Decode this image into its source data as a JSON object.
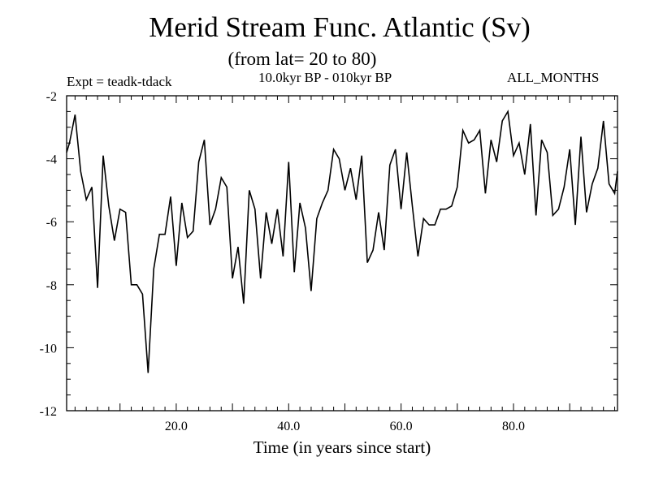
{
  "header": {
    "title": "Merid Stream Func. Atlantic (Sv)",
    "subtitle": "(from lat= 20 to 80)",
    "expt": "Expt = teadk-tdack",
    "period": "10.0kyr BP - 010kyr BP",
    "months": "ALL_MONTHS"
  },
  "chart_data": {
    "type": "line",
    "title": "Merid Stream Func. Atlantic (Sv)",
    "subtitle": "(from lat= 20 to 80)",
    "xlabel": "Time (in years since start)",
    "ylabel": "",
    "xlim": [
      0.5,
      98.5
    ],
    "ylim": [
      -12,
      -2
    ],
    "x_ticks": [
      20,
      40,
      60,
      80
    ],
    "x_tick_labels": [
      "20.0",
      "40.0",
      "60.0",
      "80.0"
    ],
    "y_ticks": [
      -12,
      -10,
      -8,
      -6,
      -4,
      -2
    ],
    "y_tick_labels": [
      "-12",
      "-10",
      "-8",
      "-6",
      "-4",
      "-2"
    ],
    "grid": false,
    "series": [
      {
        "name": "Merid Stream Func. Atlantic",
        "x": [
          0.5,
          1,
          2,
          3,
          4,
          5,
          6,
          7,
          8,
          9,
          10,
          11,
          12,
          13,
          14,
          15,
          16,
          17,
          18,
          19,
          20,
          21,
          22,
          23,
          24,
          25,
          26,
          27,
          28,
          29,
          30,
          31,
          32,
          33,
          34,
          35,
          36,
          37,
          38,
          39,
          40,
          41,
          42,
          43,
          44,
          45,
          46,
          47,
          48,
          49,
          50,
          51,
          52,
          53,
          54,
          55,
          56,
          57,
          58,
          59,
          60,
          61,
          62,
          63,
          64,
          65,
          66,
          67,
          68,
          69,
          70,
          71,
          72,
          73,
          74,
          75,
          76,
          77,
          78,
          79,
          80,
          81,
          82,
          83,
          84,
          85,
          86,
          87,
          88,
          89,
          90,
          91,
          92,
          93,
          94,
          95,
          96,
          97,
          98,
          98.5
        ],
        "values": [
          -3.8,
          -3.5,
          -2.6,
          -4.4,
          -5.3,
          -4.9,
          -8.1,
          -3.9,
          -5.5,
          -6.6,
          -5.6,
          -5.7,
          -8.0,
          -8.0,
          -8.3,
          -10.8,
          -7.5,
          -6.4,
          -6.4,
          -5.2,
          -7.4,
          -5.4,
          -6.5,
          -6.3,
          -4.1,
          -3.4,
          -6.1,
          -5.6,
          -4.6,
          -4.9,
          -7.8,
          -6.8,
          -8.6,
          -5.0,
          -5.6,
          -7.8,
          -5.7,
          -6.7,
          -5.6,
          -7.1,
          -4.1,
          -7.6,
          -5.4,
          -6.2,
          -8.2,
          -5.9,
          -5.4,
          -5.0,
          -3.7,
          -4.0,
          -5.0,
          -4.3,
          -5.3,
          -3.9,
          -7.3,
          -6.9,
          -5.7,
          -6.9,
          -4.2,
          -3.7,
          -5.6,
          -3.8,
          -5.5,
          -7.1,
          -5.9,
          -6.1,
          -6.1,
          -5.6,
          -5.6,
          -5.5,
          -4.9,
          -3.1,
          -3.5,
          -3.4,
          -3.1,
          -5.1,
          -3.4,
          -4.1,
          -2.8,
          -2.5,
          -3.9,
          -3.5,
          -4.5,
          -2.9,
          -5.8,
          -3.4,
          -3.8,
          -5.8,
          -5.6,
          -4.9,
          -3.7,
          -6.1,
          -3.3,
          -5.7,
          -4.8,
          -4.3,
          -2.8,
          -4.8,
          -5.1,
          -4.4
        ]
      }
    ]
  }
}
